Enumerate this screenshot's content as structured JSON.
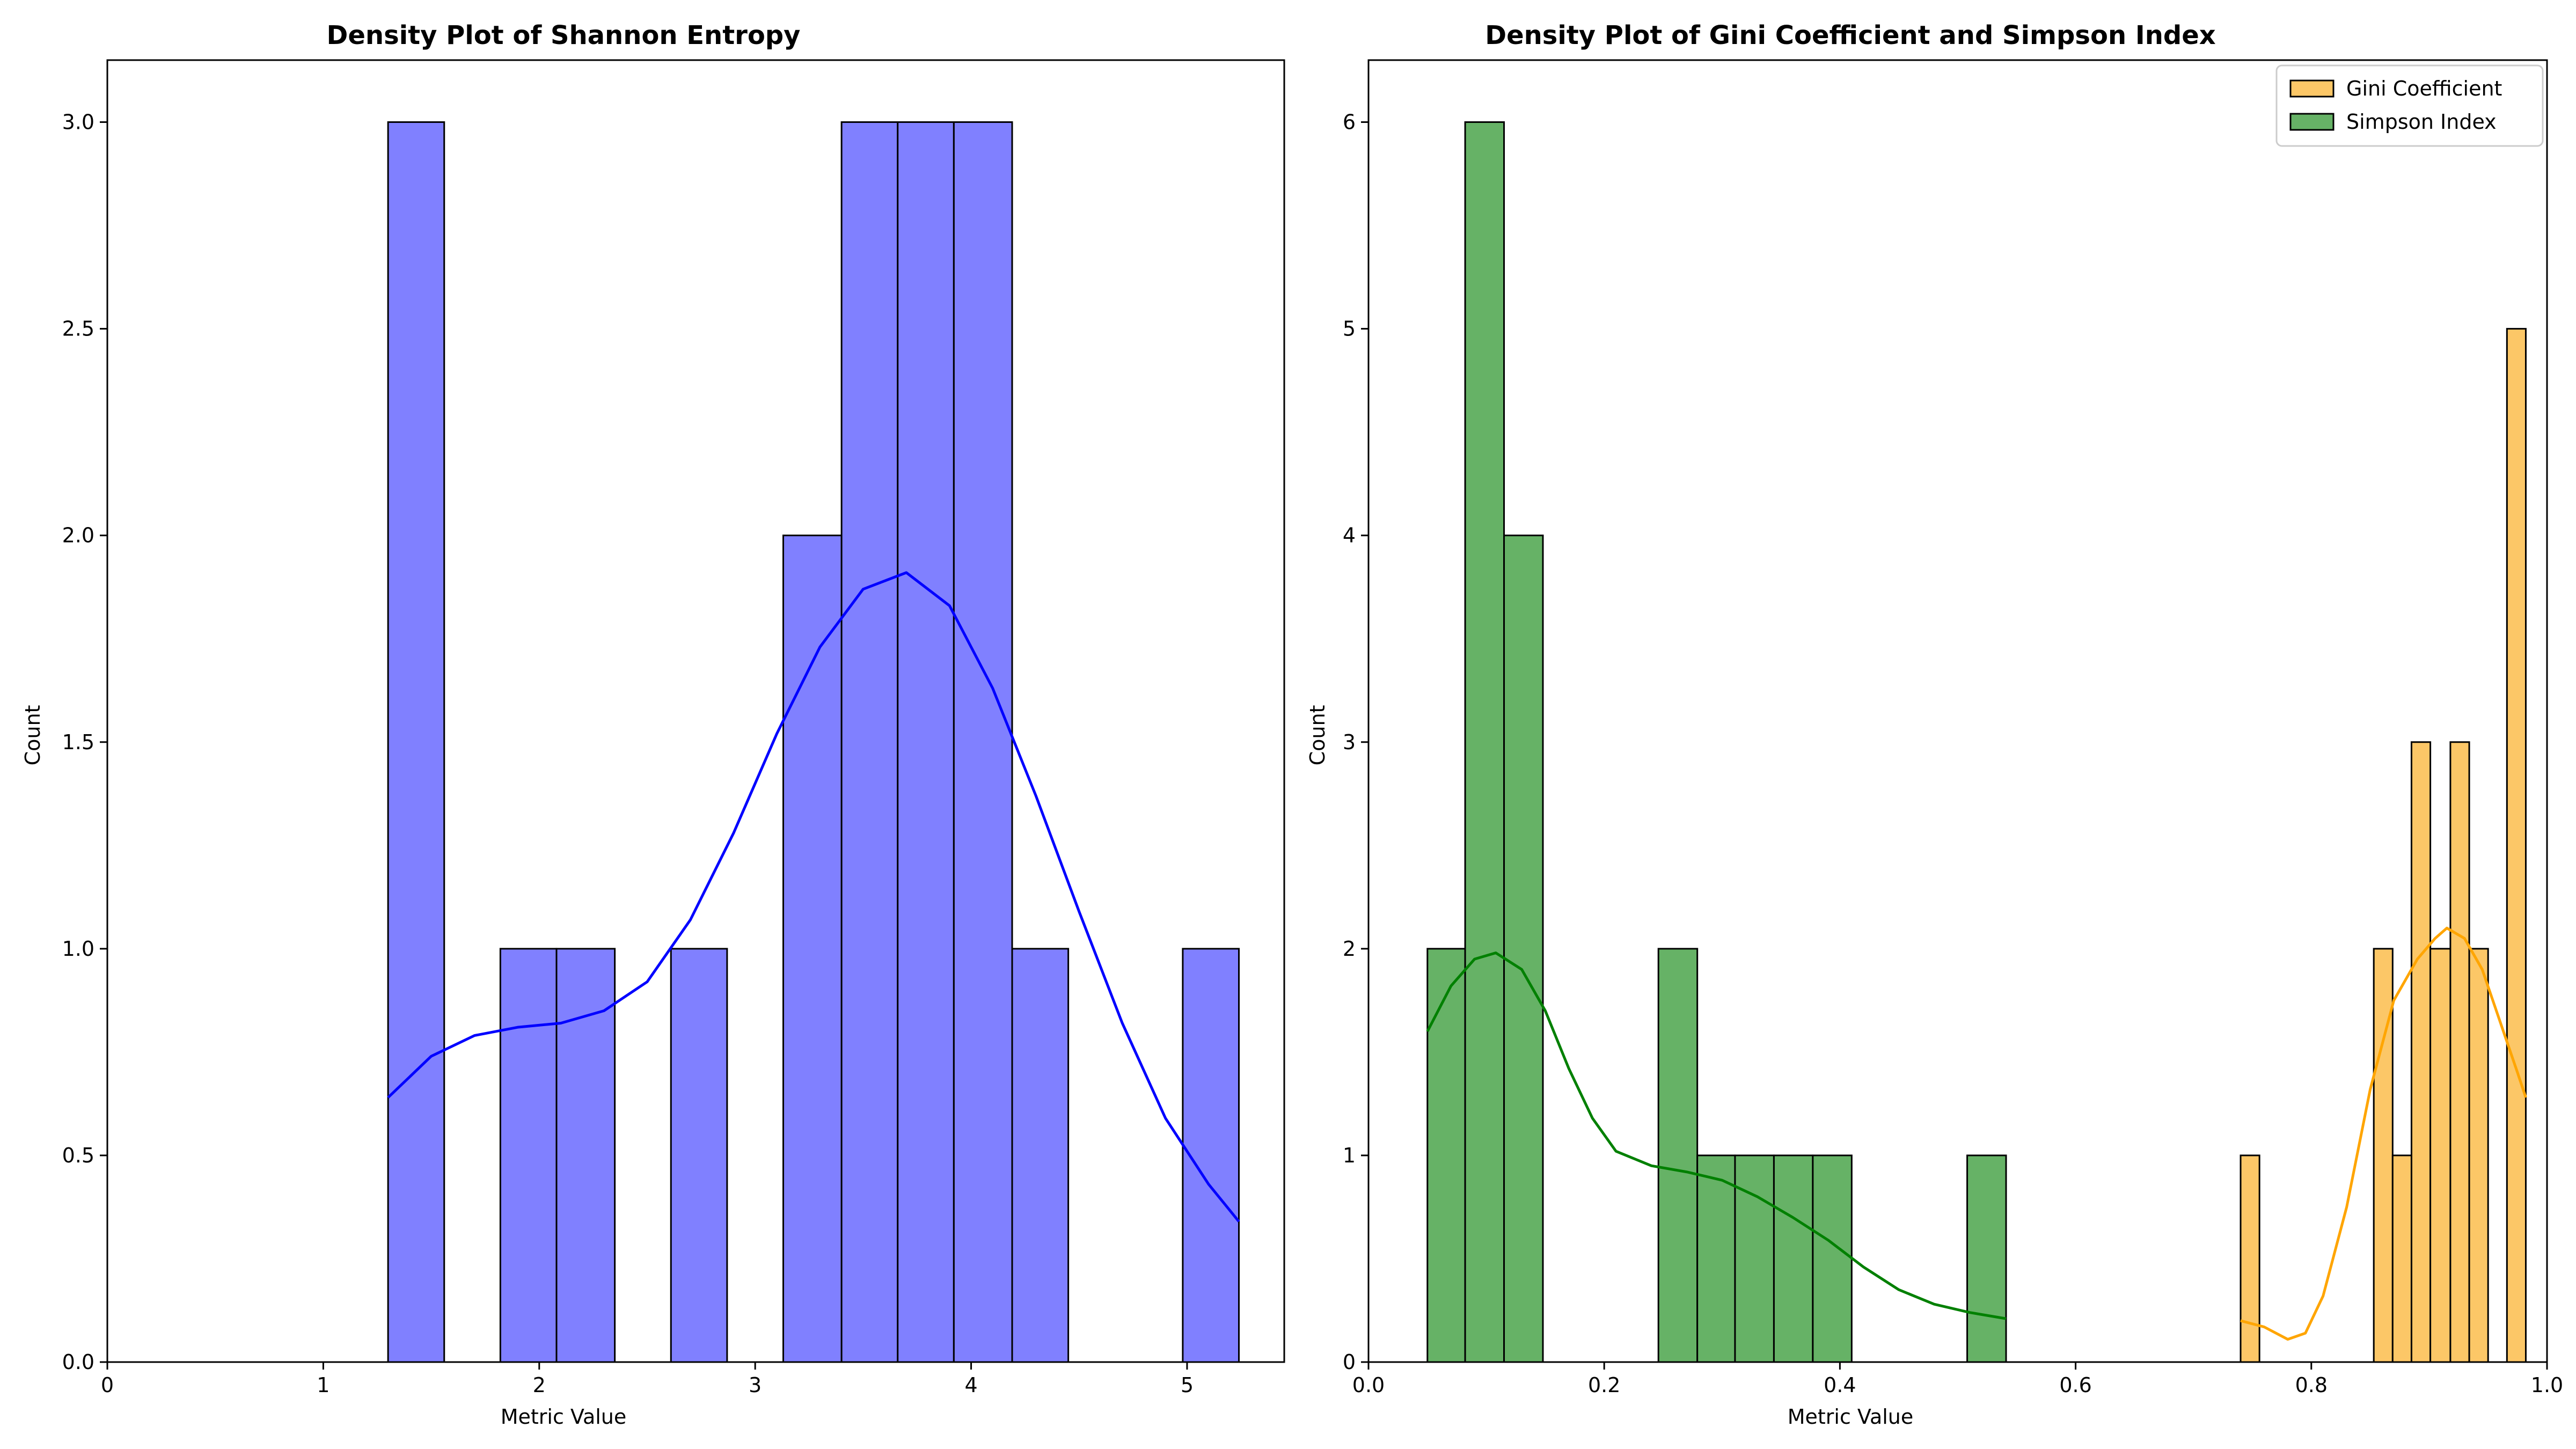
{
  "colors": {
    "shannon_fill": "#8080ff",
    "shannon_kde": "#0000ff",
    "gini_fill": "#fcc767",
    "gini_kde": "#ffa500",
    "simpson_fill": "#66b266",
    "simpson_kde": "#008000",
    "edge": "#000000"
  },
  "chart_data": [
    {
      "type": "bar",
      "title": "Density Plot of Shannon Entropy",
      "xlabel": "Metric Value",
      "ylabel": "Count",
      "xlim": [
        0,
        5.45
      ],
      "ylim": [
        0,
        3.15
      ],
      "xticks": [
        0,
        1,
        2,
        3,
        4,
        5
      ],
      "xtick_labels": [
        "0",
        "1",
        "2",
        "3",
        "4",
        "5"
      ],
      "yticks": [
        0,
        0.5,
        1.0,
        1.5,
        2.0,
        2.5,
        3.0
      ],
      "ytick_labels": [
        "0.0",
        "0.5",
        "1.0",
        "1.5",
        "2.0",
        "2.5",
        "3.0"
      ],
      "grid": false,
      "series": [
        {
          "bins": [
            {
              "x0": 1.3,
              "x1": 1.56,
              "count": 3
            },
            {
              "x0": 1.56,
              "x1": 1.82,
              "count": 0
            },
            {
              "x0": 1.82,
              "x1": 2.08,
              "count": 1
            },
            {
              "x0": 2.08,
              "x1": 2.35,
              "count": 1
            },
            {
              "x0": 2.35,
              "x1": 2.61,
              "count": 0
            },
            {
              "x0": 2.61,
              "x1": 2.87,
              "count": 1
            },
            {
              "x0": 2.87,
              "x1": 3.13,
              "count": 0
            },
            {
              "x0": 3.13,
              "x1": 3.4,
              "count": 2
            },
            {
              "x0": 3.4,
              "x1": 3.66,
              "count": 3
            },
            {
              "x0": 3.66,
              "x1": 3.92,
              "count": 3
            },
            {
              "x0": 3.92,
              "x1": 4.19,
              "count": 3
            },
            {
              "x0": 4.19,
              "x1": 4.45,
              "count": 1
            },
            {
              "x0": 4.45,
              "x1": 4.71,
              "count": 0
            },
            {
              "x0": 4.71,
              "x1": 4.98,
              "count": 0
            },
            {
              "x0": 4.98,
              "x1": 5.24,
              "count": 1
            }
          ],
          "kde": [
            [
              1.3,
              0.64
            ],
            [
              1.5,
              0.74
            ],
            [
              1.7,
              0.79
            ],
            [
              1.9,
              0.81
            ],
            [
              2.1,
              0.82
            ],
            [
              2.3,
              0.85
            ],
            [
              2.5,
              0.92
            ],
            [
              2.7,
              1.07
            ],
            [
              2.9,
              1.28
            ],
            [
              3.1,
              1.52
            ],
            [
              3.3,
              1.73
            ],
            [
              3.5,
              1.87
            ],
            [
              3.7,
              1.91
            ],
            [
              3.9,
              1.83
            ],
            [
              4.1,
              1.63
            ],
            [
              4.3,
              1.37
            ],
            [
              4.5,
              1.09
            ],
            [
              4.7,
              0.82
            ],
            [
              4.9,
              0.59
            ],
            [
              5.1,
              0.43
            ],
            [
              5.24,
              0.34
            ]
          ]
        }
      ]
    },
    {
      "type": "bar",
      "title": "Density Plot of Gini Coefficient and Simpson Index",
      "xlabel": "Metric Value",
      "ylabel": "Count",
      "xlim": [
        0,
        1.0
      ],
      "ylim": [
        0,
        6.3
      ],
      "xticks": [
        0,
        0.2,
        0.4,
        0.6,
        0.8,
        1.0
      ],
      "xtick_labels": [
        "0.0",
        "0.2",
        "0.4",
        "0.6",
        "0.8",
        "1.0"
      ],
      "yticks": [
        0,
        1,
        2,
        3,
        4,
        5,
        6
      ],
      "ytick_labels": [
        "0",
        "1",
        "2",
        "3",
        "4",
        "5",
        "6"
      ],
      "grid": false,
      "legend": {
        "position": "top-right",
        "entries": [
          "Gini Coefficient",
          "Simpson Index"
        ]
      },
      "series": [
        {
          "name": "Gini Coefficient",
          "bins": [
            {
              "x0": 0.74,
              "x1": 0.756,
              "count": 1
            },
            {
              "x0": 0.853,
              "x1": 0.869,
              "count": 2
            },
            {
              "x0": 0.869,
              "x1": 0.885,
              "count": 1
            },
            {
              "x0": 0.885,
              "x1": 0.901,
              "count": 3
            },
            {
              "x0": 0.901,
              "x1": 0.918,
              "count": 2
            },
            {
              "x0": 0.918,
              "x1": 0.934,
              "count": 3
            },
            {
              "x0": 0.934,
              "x1": 0.95,
              "count": 2
            },
            {
              "x0": 0.966,
              "x1": 0.982,
              "count": 5
            }
          ],
          "kde": [
            [
              0.74,
              0.2
            ],
            [
              0.76,
              0.17
            ],
            [
              0.78,
              0.11
            ],
            [
              0.795,
              0.14
            ],
            [
              0.81,
              0.32
            ],
            [
              0.83,
              0.75
            ],
            [
              0.85,
              1.32
            ],
            [
              0.87,
              1.75
            ],
            [
              0.89,
              1.95
            ],
            [
              0.905,
              2.05
            ],
            [
              0.915,
              2.1
            ],
            [
              0.93,
              2.05
            ],
            [
              0.945,
              1.9
            ],
            [
              0.96,
              1.65
            ],
            [
              0.975,
              1.4
            ],
            [
              0.982,
              1.28
            ]
          ]
        },
        {
          "name": "Simpson Index",
          "bins": [
            {
              "x0": 0.05,
              "x1": 0.082,
              "count": 2
            },
            {
              "x0": 0.082,
              "x1": 0.115,
              "count": 6
            },
            {
              "x0": 0.115,
              "x1": 0.148,
              "count": 4
            },
            {
              "x0": 0.148,
              "x1": 0.18,
              "count": 0
            },
            {
              "x0": 0.18,
              "x1": 0.213,
              "count": 0
            },
            {
              "x0": 0.213,
              "x1": 0.246,
              "count": 0
            },
            {
              "x0": 0.246,
              "x1": 0.279,
              "count": 2
            },
            {
              "x0": 0.279,
              "x1": 0.311,
              "count": 1
            },
            {
              "x0": 0.311,
              "x1": 0.344,
              "count": 1
            },
            {
              "x0": 0.344,
              "x1": 0.377,
              "count": 1
            },
            {
              "x0": 0.377,
              "x1": 0.41,
              "count": 1
            },
            {
              "x0": 0.41,
              "x1": 0.442,
              "count": 0
            },
            {
              "x0": 0.442,
              "x1": 0.475,
              "count": 0
            },
            {
              "x0": 0.475,
              "x1": 0.508,
              "count": 0
            },
            {
              "x0": 0.508,
              "x1": 0.541,
              "count": 1
            }
          ],
          "kde": [
            [
              0.05,
              1.6
            ],
            [
              0.07,
              1.82
            ],
            [
              0.09,
              1.95
            ],
            [
              0.108,
              1.98
            ],
            [
              0.13,
              1.9
            ],
            [
              0.15,
              1.7
            ],
            [
              0.17,
              1.42
            ],
            [
              0.19,
              1.18
            ],
            [
              0.21,
              1.02
            ],
            [
              0.24,
              0.95
            ],
            [
              0.27,
              0.92
            ],
            [
              0.3,
              0.88
            ],
            [
              0.33,
              0.8
            ],
            [
              0.36,
              0.7
            ],
            [
              0.39,
              0.59
            ],
            [
              0.42,
              0.46
            ],
            [
              0.45,
              0.35
            ],
            [
              0.48,
              0.28
            ],
            [
              0.51,
              0.24
            ],
            [
              0.541,
              0.21
            ]
          ]
        }
      ]
    }
  ]
}
